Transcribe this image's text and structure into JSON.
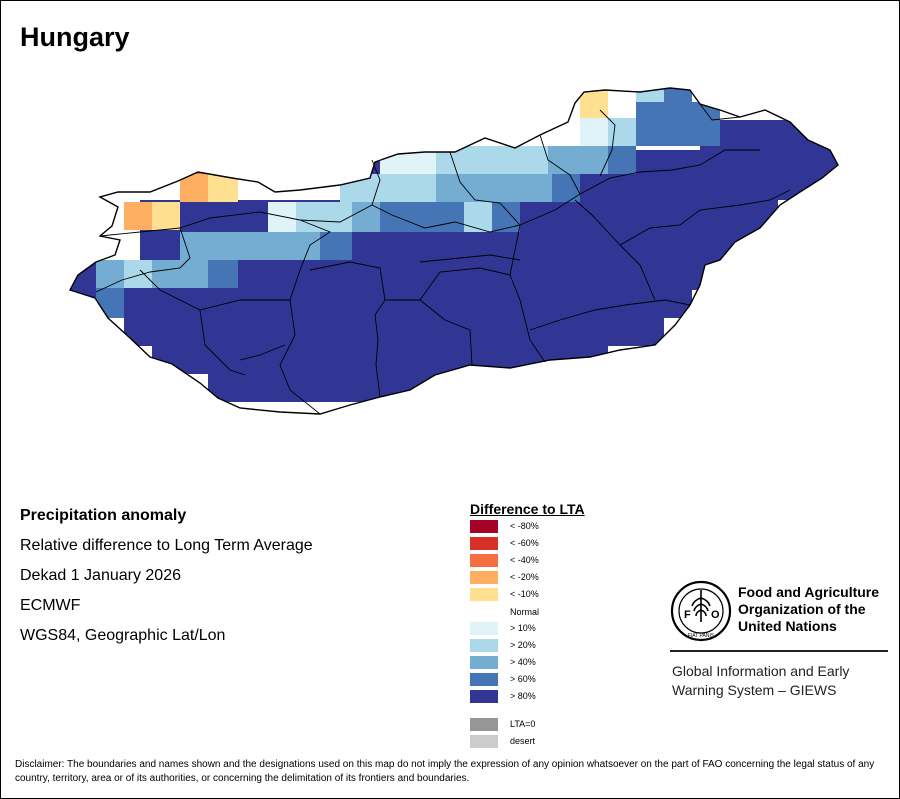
{
  "title": "Hungary",
  "info": {
    "product": "Precipitation anomaly",
    "description": "Relative difference to Long Term Average",
    "period": "Dekad 1 January 2026",
    "source": "ECMWF",
    "projection": "WGS84, Geographic Lat/Lon"
  },
  "legend": {
    "title": "Difference to LTA",
    "items": [
      {
        "label": "< -80%",
        "color": "#a50026"
      },
      {
        "label": "< -60%",
        "color": "#d73027"
      },
      {
        "label": "< -40%",
        "color": "#f46d43"
      },
      {
        "label": "< -20%",
        "color": "#fdae61"
      },
      {
        "label": "< -10%",
        "color": "#fee090"
      },
      {
        "label": "> 10%",
        "color": "#e0f3f8"
      },
      {
        "label": "> 20%",
        "color": "#abd9e9"
      },
      {
        "label": "> 40%",
        "color": "#74add1"
      },
      {
        "label": "> 60%",
        "color": "#4575b4"
      },
      {
        "label": "> 80%",
        "color": "#313695"
      }
    ],
    "normal_label": "Normal",
    "extra": [
      {
        "label": "LTA=0",
        "color": "#969696"
      },
      {
        "label": "desert",
        "color": "#cccccc"
      }
    ]
  },
  "org": {
    "name_line1": "Food and Agriculture",
    "name_line2": "Organization of the",
    "name_line3": "United Nations",
    "system_line1": "Global Information and Early",
    "system_line2": "Warning System – GIEWS",
    "logo_letters": "FAO",
    "logo_motto": "FIAT PANIS"
  },
  "disclaimer": "Disclaimer: The boundaries and names shown and the designations used on this map do not imply the expression of any opinion whatsoever on the part of FAO concerning the legal status of any country, territory, area or of its authorities, or concerning the delimitation of its frontiers and boundaries."
}
